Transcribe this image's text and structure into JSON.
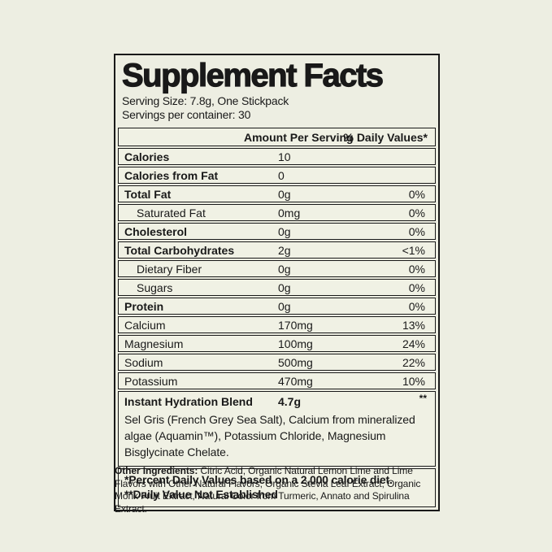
{
  "colors": {
    "background": "#edeee2",
    "panel": "#f0f1e4",
    "border": "#191919",
    "text": "#191919"
  },
  "label": {
    "title": "Supplement Facts",
    "serving_size": "Serving Size: 7.8g, One Stickpack",
    "servings_per_container": "Servings per container: 30",
    "header": {
      "amount": "Amount Per Serving",
      "daily_value": "% Daily Values*"
    },
    "rows": [
      {
        "name": "Calories",
        "amount": "10",
        "dv": "",
        "style": "bold"
      },
      {
        "name": "Calories from Fat",
        "amount": "0",
        "dv": "",
        "style": "bold"
      },
      {
        "name": "Total Fat",
        "amount": "0g",
        "dv": "0%",
        "style": "bold"
      },
      {
        "name": "Saturated Fat",
        "amount": "0mg",
        "dv": "0%",
        "style": "indent"
      },
      {
        "name": "Cholesterol",
        "amount": "0g",
        "dv": "0%",
        "style": "bold"
      },
      {
        "name": "Total Carbohydrates",
        "amount": "2g",
        "dv": "<1%",
        "style": "bold"
      },
      {
        "name": "Dietary Fiber",
        "amount": "0g",
        "dv": "0%",
        "style": "indent"
      },
      {
        "name": "Sugars",
        "amount": "0g",
        "dv": "0%",
        "style": "indent"
      },
      {
        "name": "Protein",
        "amount": "0g",
        "dv": "0%",
        "style": "bold"
      },
      {
        "name": "Calcium",
        "amount": "170mg",
        "dv": "13%",
        "style": "plain"
      },
      {
        "name": "Magnesium",
        "amount": "100mg",
        "dv": "24%",
        "style": "plain"
      },
      {
        "name": "Sodium",
        "amount": "500mg",
        "dv": "22%",
        "style": "plain"
      },
      {
        "name": "Potassium",
        "amount": "470mg",
        "dv": "10%",
        "style": "plain"
      }
    ],
    "blend": {
      "name": "Instant Hydration Blend",
      "amount": "4.7g",
      "dv": "**",
      "description": "Sel Gris (French Grey Sea Salt), Calcium from mineralized algae (Aquamin™), Potassium Chloride, Magnesium Bisglycinate Chelate."
    },
    "footnotes": [
      "*Percent Daily Values based on a 2,000 calorie diet.",
      "**Daily Value Not Established"
    ],
    "other_ingredients": {
      "label": "Other Ingredients:",
      "text": " Citric Acid, Organic Natural Lemon Lime and Lime Flavors with Other Natural Flavors, Organic Stevia Leaf Extract, Organic Monk Fruit Extract, Natural Color from Turmeric, Annato and Spirulina Extract."
    }
  }
}
